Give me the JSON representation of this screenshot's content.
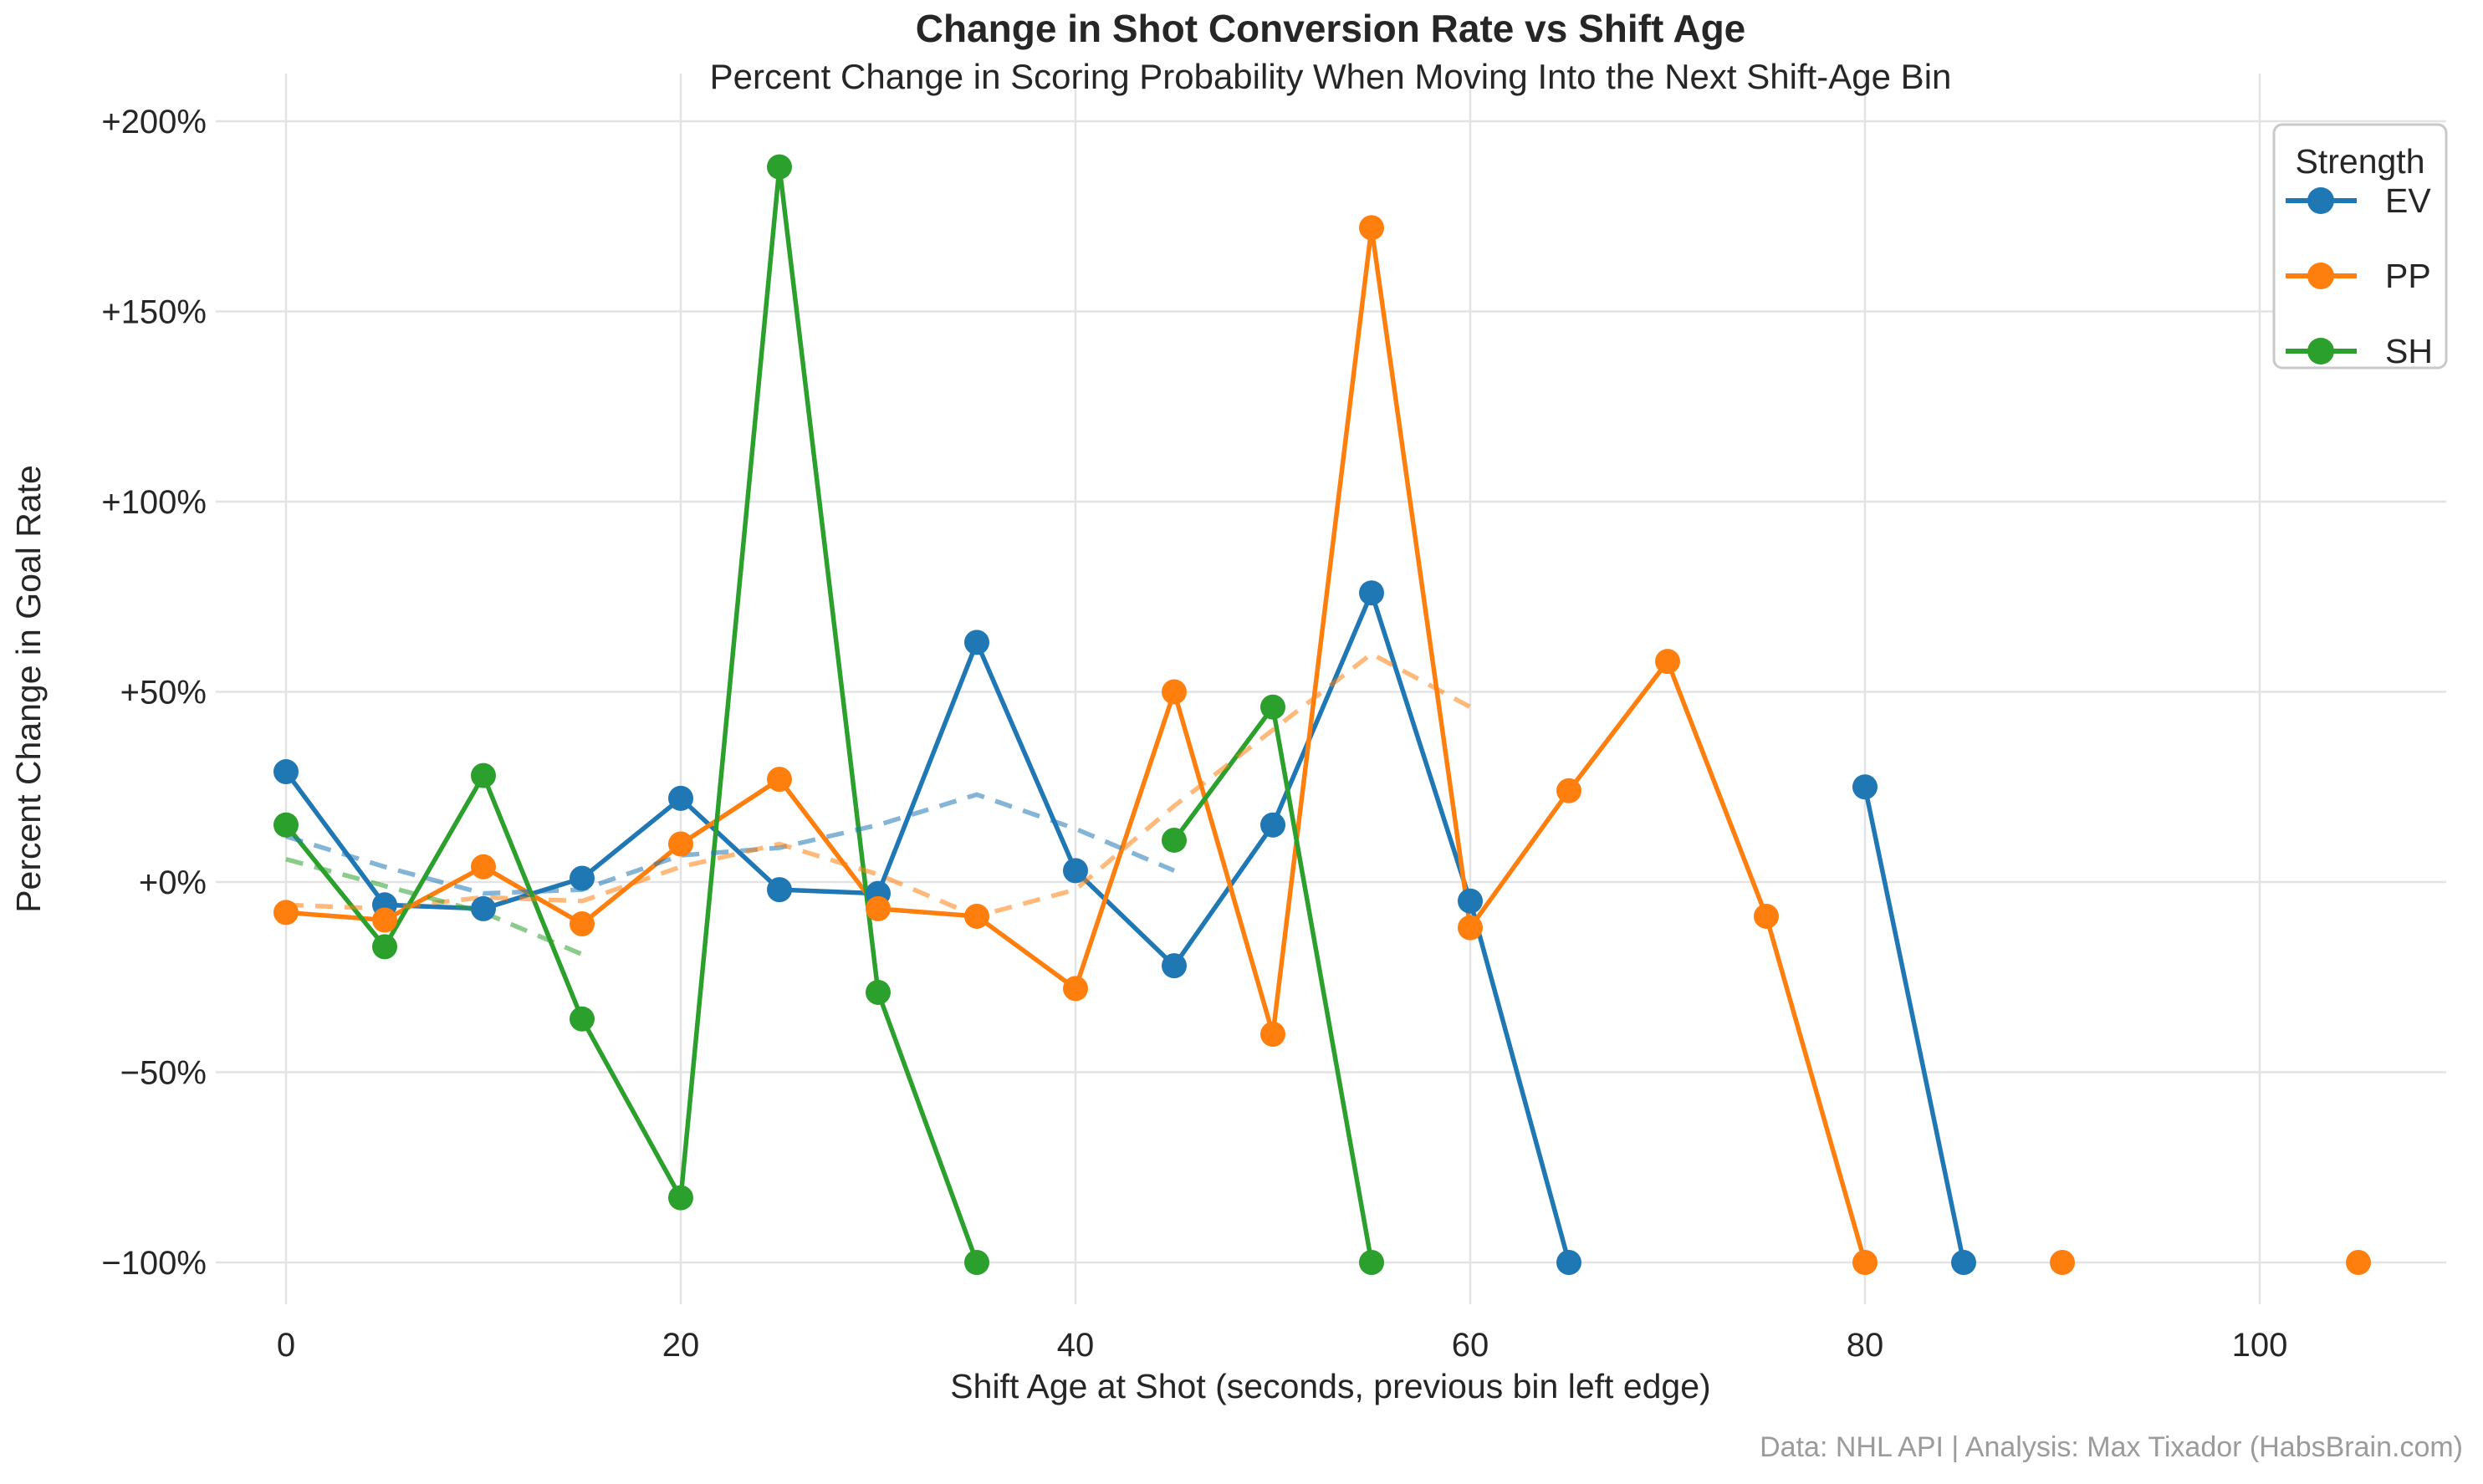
{
  "chart_data": {
    "type": "line",
    "title": "Change in Shot Conversion Rate vs Shift Age",
    "subtitle": "Percent Change in Scoring Probability When Moving Into the Next Shift-Age Bin",
    "xlabel": "Shift Age at Shot (seconds, previous bin left edge)",
    "ylabel": "Percent Change in Goal Rate",
    "footer": "Data: NHL API | Analysis: Max Tixador (HabsBrain.com)",
    "grid": true,
    "legend": {
      "title": "Strength",
      "entries": [
        "EV",
        "PP",
        "SH"
      ],
      "position": "top-right"
    },
    "xlim": [
      -4,
      109
    ],
    "ylim": [
      -111,
      212
    ],
    "x_ticks": [
      {
        "label": "0",
        "value": 0
      },
      {
        "label": "20",
        "value": 20
      },
      {
        "label": "40",
        "value": 40
      },
      {
        "label": "60",
        "value": 60
      },
      {
        "label": "80",
        "value": 80
      },
      {
        "label": "100",
        "value": 100
      }
    ],
    "y_ticks": [
      {
        "label": "+200%",
        "value": 200
      },
      {
        "label": "+150%",
        "value": 150
      },
      {
        "label": "+100%",
        "value": 100
      },
      {
        "label": "+50%",
        "value": 50
      },
      {
        "label": "+0%",
        "value": 0
      },
      {
        "label": "−50%",
        "value": -50
      },
      {
        "label": "−100%",
        "value": -100
      }
    ],
    "series": [
      {
        "name": "EV",
        "color": "#1f77b4",
        "segments": [
          [
            [
              0,
              29
            ],
            [
              5,
              -6
            ],
            [
              10,
              -7
            ],
            [
              15,
              1
            ],
            [
              20,
              22
            ],
            [
              25,
              -2
            ],
            [
              30,
              -3
            ],
            [
              35,
              63
            ],
            [
              40,
              3
            ],
            [
              45,
              -22
            ],
            [
              50,
              15
            ],
            [
              55,
              76
            ],
            [
              60,
              -5
            ],
            [
              65,
              -100
            ]
          ],
          [
            [
              80,
              25
            ],
            [
              85,
              -100
            ]
          ]
        ]
      },
      {
        "name": "PP",
        "color": "#ff7f0e",
        "segments": [
          [
            [
              0,
              -8
            ],
            [
              5,
              -10
            ],
            [
              10,
              4
            ],
            [
              15,
              -11
            ],
            [
              20,
              10
            ],
            [
              25,
              27
            ],
            [
              30,
              -7
            ],
            [
              35,
              -9
            ],
            [
              40,
              -28
            ],
            [
              45,
              50
            ],
            [
              50,
              -40
            ],
            [
              55,
              172
            ],
            [
              60,
              -12
            ],
            [
              65,
              24
            ],
            [
              70,
              58
            ],
            [
              75,
              -9
            ],
            [
              80,
              -100
            ]
          ],
          [
            [
              90,
              -100
            ]
          ],
          [
            [
              105,
              -100
            ]
          ]
        ]
      },
      {
        "name": "SH",
        "color": "#2ca02c",
        "segments": [
          [
            [
              0,
              15
            ],
            [
              5,
              -17
            ],
            [
              10,
              28
            ],
            [
              15,
              -36
            ],
            [
              20,
              -83
            ],
            [
              25,
              188
            ],
            [
              30,
              -29
            ],
            [
              35,
              -100
            ]
          ],
          [
            [
              45,
              11
            ],
            [
              50,
              46
            ],
            [
              55,
              -100
            ]
          ]
        ]
      }
    ],
    "trends": [
      {
        "name": "EV rolling trend",
        "color": "#1f77b4",
        "points": [
          [
            0,
            12
          ],
          [
            5,
            4
          ],
          [
            10,
            -3
          ],
          [
            15,
            -2
          ],
          [
            20,
            7
          ],
          [
            25,
            9
          ],
          [
            30,
            15
          ],
          [
            35,
            23
          ],
          [
            40,
            14
          ],
          [
            45,
            3
          ]
        ]
      },
      {
        "name": "PP rolling trend",
        "color": "#ff7f0e",
        "points": [
          [
            0,
            -6
          ],
          [
            5,
            -7
          ],
          [
            10,
            -4
          ],
          [
            15,
            -5
          ],
          [
            20,
            4
          ],
          [
            25,
            10
          ],
          [
            30,
            2
          ],
          [
            35,
            -9
          ],
          [
            40,
            -2
          ],
          [
            45,
            20
          ],
          [
            50,
            40
          ],
          [
            55,
            60
          ],
          [
            60,
            46
          ]
        ]
      },
      {
        "name": "SH rolling trend",
        "color": "#2ca02c",
        "points": [
          [
            0,
            6
          ],
          [
            5,
            -1
          ],
          [
            10,
            -8
          ],
          [
            15,
            -19
          ]
        ]
      }
    ]
  }
}
